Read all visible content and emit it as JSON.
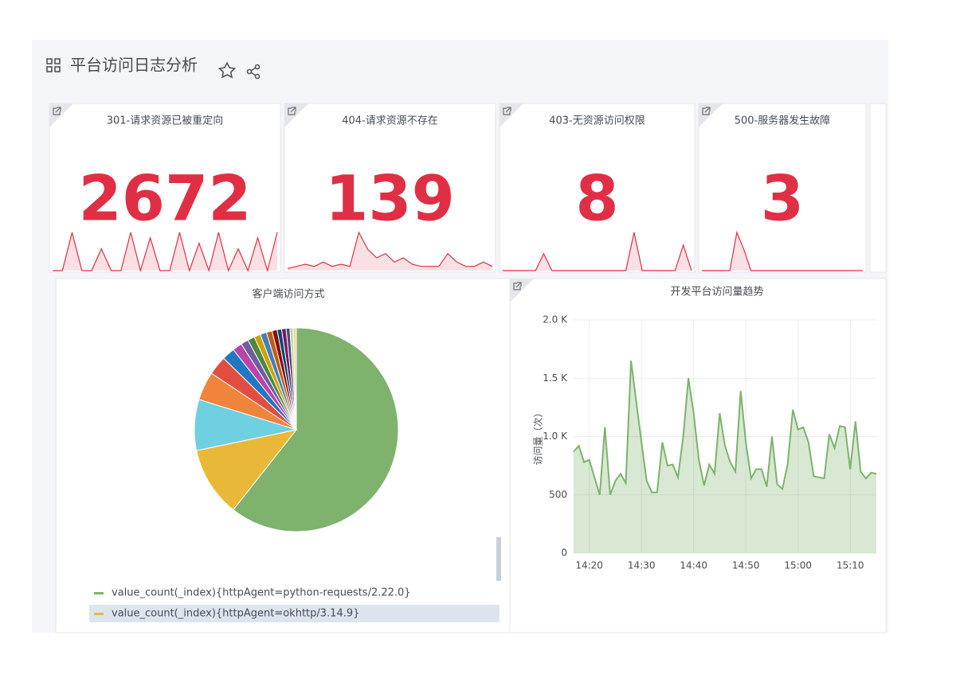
{
  "header": {
    "title": "平台访问日志分析"
  },
  "stat_panels": [
    {
      "title": "301-请求资源已被重定向",
      "value": 2672,
      "color": "#e02f44",
      "sparkline": [
        0,
        0,
        0.7,
        0,
        0,
        0.4,
        0,
        0,
        0.7,
        0,
        0.6,
        0,
        0,
        0.7,
        0,
        0.5,
        0,
        0.7,
        0,
        0.4,
        0,
        0.6,
        0,
        0.7
      ]
    },
    {
      "title": "404-请求资源不存在",
      "value": 139,
      "color": "#e02f44",
      "sparkline": [
        0.05,
        0.1,
        0.15,
        0.1,
        0.2,
        0.1,
        0.15,
        0.1,
        0.9,
        0.5,
        0.3,
        0.4,
        0.2,
        0.3,
        0.15,
        0.1,
        0.1,
        0.1,
        0.4,
        0.2,
        0.1,
        0.1,
        0.2,
        0.1
      ]
    },
    {
      "title": "403-无资源访问权限",
      "value": 8,
      "color": "#e02f44",
      "sparkline": [
        0,
        0,
        0,
        0,
        0,
        0.4,
        0,
        0,
        0,
        0,
        0,
        0,
        0,
        0,
        0,
        0,
        0.9,
        0,
        0,
        0,
        0,
        0,
        0.6,
        0
      ]
    },
    {
      "title": "500-服务器发生故障",
      "value": 3,
      "color": "#e02f44",
      "sparkline": [
        0,
        0,
        0,
        0,
        0,
        0.9,
        0.5,
        0,
        0,
        0,
        0,
        0,
        0,
        0,
        0,
        0,
        0,
        0,
        0,
        0,
        0,
        0,
        0,
        0
      ]
    }
  ],
  "chart_data": [
    {
      "type": "pie",
      "title": "客户端访问方式",
      "categories": [
        "value_count(_index){httpAgent=python-requests/2.22.0}",
        "value_count(_index){httpAgent=okhttp/3.14.9}",
        null,
        null,
        null,
        null,
        null,
        null,
        null,
        null,
        null,
        null,
        null,
        null,
        null,
        null,
        null,
        null
      ],
      "values": [
        60,
        11,
        8,
        4.5,
        3,
        2,
        1.5,
        1.2,
        1.1,
        1,
        1,
        0.9,
        0.8,
        0.7,
        0.7,
        0.6,
        0.5,
        0.5
      ],
      "colors": [
        "#7eb26d",
        "#eab839",
        "#6ed0e0",
        "#ef843c",
        "#e24d42",
        "#1f78c1",
        "#ba43a9",
        "#705da0",
        "#508642",
        "#cca300",
        "#447ebc",
        "#c15c17",
        "#890f02",
        "#0a437c",
        "#6d1f62",
        "#584477",
        "#b7dbab",
        "#f4d598"
      ]
    },
    {
      "type": "line",
      "title": "开发平台访问量趋势",
      "y_label": "访问量（次）",
      "x": [
        "14:17",
        "14:18",
        "14:19",
        "14:20",
        "14:21",
        "14:22",
        "14:23",
        "14:24",
        "14:25",
        "14:26",
        "14:27",
        "14:28",
        "14:29",
        "14:30",
        "14:31",
        "14:32",
        "14:33",
        "14:34",
        "14:35",
        "14:36",
        "14:37",
        "14:38",
        "14:39",
        "14:40",
        "14:41",
        "14:42",
        "14:43",
        "14:44",
        "14:45",
        "14:46",
        "14:47",
        "14:48",
        "14:49",
        "14:50",
        "14:51",
        "14:52",
        "14:53",
        "14:54",
        "14:55",
        "14:56",
        "14:57",
        "14:58",
        "14:59",
        "15:00",
        "15:01",
        "15:02",
        "15:03",
        "15:04",
        "15:05",
        "15:06",
        "15:07",
        "15:08",
        "15:09",
        "15:10",
        "15:11",
        "15:12",
        "15:13",
        "15:14",
        "15:15"
      ],
      "series": [
        {
          "color": "#7eb26d",
          "values": [
            870,
            920,
            780,
            800,
            650,
            500,
            1080,
            500,
            620,
            680,
            600,
            1650,
            1300,
            950,
            620,
            520,
            520,
            950,
            750,
            760,
            650,
            1000,
            1500,
            1200,
            800,
            580,
            760,
            680,
            1200,
            920,
            780,
            700,
            1390,
            950,
            640,
            720,
            720,
            570,
            1000,
            590,
            550,
            760,
            1230,
            1060,
            1080,
            950,
            660,
            650,
            640,
            1020,
            900,
            1090,
            1080,
            720,
            1130,
            700,
            640,
            690,
            680
          ]
        }
      ],
      "xlim": [
        "14:17",
        "15:15"
      ],
      "ylim": [
        0,
        2000
      ],
      "xticks": [
        "14:20",
        "14:30",
        "14:40",
        "14:50",
        "15:00",
        "15:10"
      ],
      "yticks": [
        0,
        500,
        {
          "value": 1000,
          "label": "1.0 K"
        },
        {
          "value": 1500,
          "label": "1.5 K"
        },
        {
          "value": 2000,
          "label": "2.0 K"
        }
      ],
      "grid": true
    }
  ]
}
